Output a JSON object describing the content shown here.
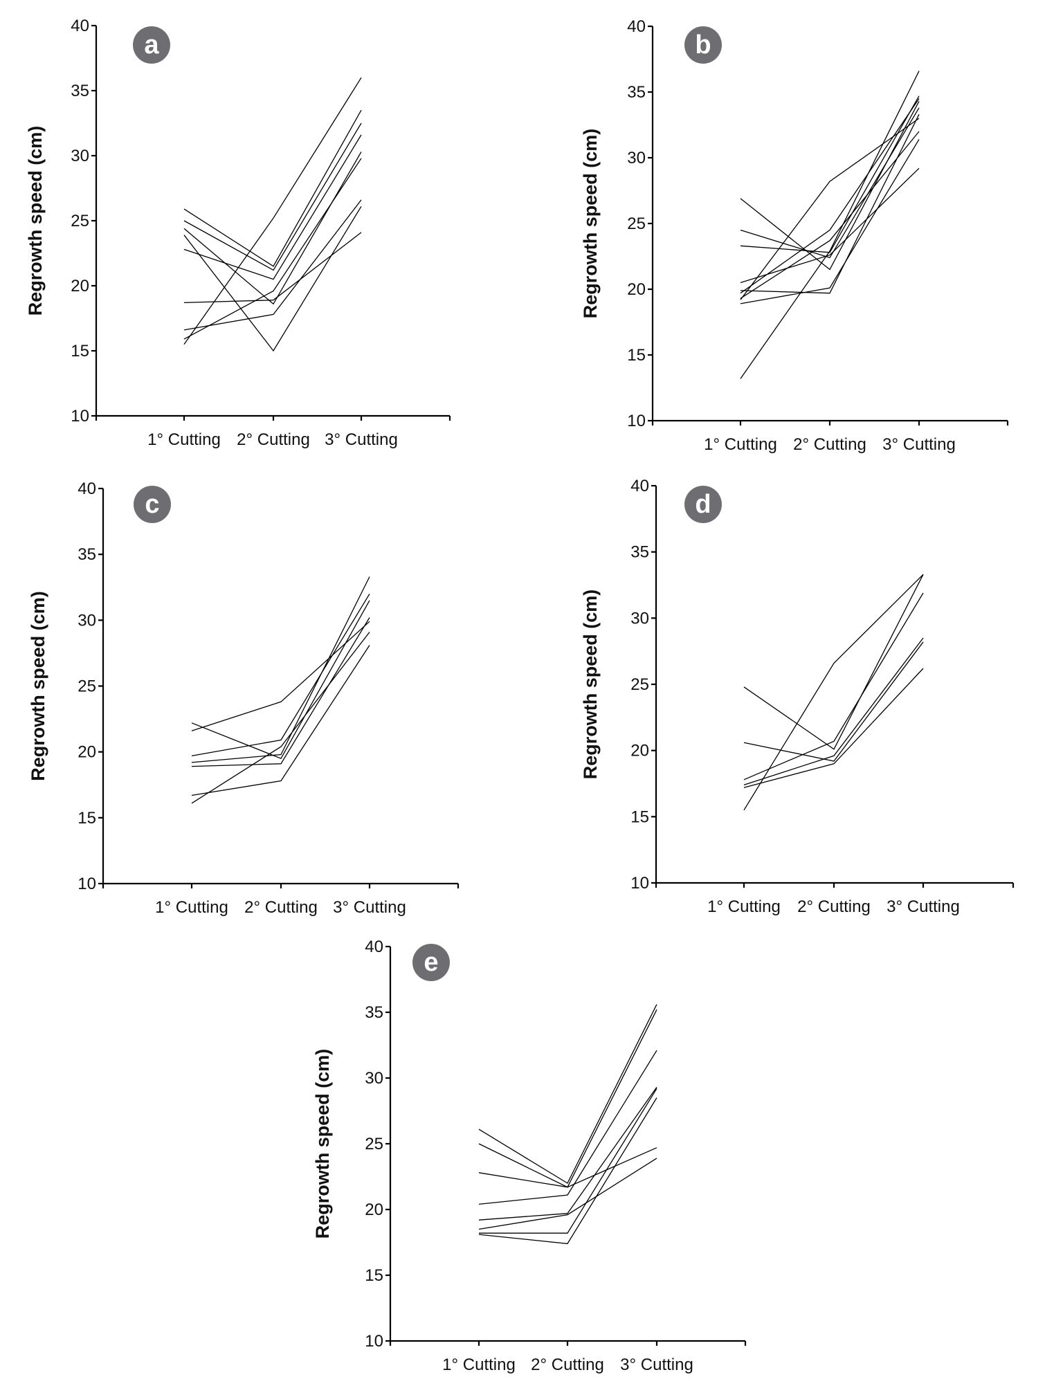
{
  "chart_data": [
    {
      "panel": "a",
      "type": "line",
      "title": "",
      "xlabel": "",
      "ylabel": "Regrowth speed (cm)",
      "ylim": [
        10,
        40
      ],
      "yticks": [
        10,
        15,
        20,
        25,
        30,
        35,
        40
      ],
      "categories": [
        "1° Cutting",
        "2° Cutting",
        "3° Cutting"
      ],
      "grid": false,
      "series": [
        {
          "name": "line-1",
          "values": [
            25.9,
            21.5,
            33.5
          ]
        },
        {
          "name": "line-2",
          "values": [
            25.0,
            21.2,
            32.5
          ]
        },
        {
          "name": "line-3",
          "values": [
            24.4,
            18.6,
            30.3
          ]
        },
        {
          "name": "line-4",
          "values": [
            23.9,
            15.0,
            26.1
          ]
        },
        {
          "name": "line-5",
          "values": [
            22.8,
            20.5,
            31.6
          ]
        },
        {
          "name": "line-6",
          "values": [
            18.7,
            18.9,
            24.1
          ]
        },
        {
          "name": "line-7",
          "values": [
            16.6,
            17.8,
            26.6
          ]
        },
        {
          "name": "line-8",
          "values": [
            15.9,
            19.6,
            29.8
          ]
        },
        {
          "name": "line-9",
          "values": [
            15.5,
            25.2,
            36.0
          ]
        }
      ]
    },
    {
      "panel": "b",
      "type": "line",
      "title": "",
      "xlabel": "",
      "ylabel": "Regrowth speed (cm)",
      "ylim": [
        10,
        40
      ],
      "yticks": [
        10,
        15,
        20,
        25,
        30,
        35,
        40
      ],
      "categories": [
        "1° Cutting",
        "2° Cutting",
        "3° Cutting"
      ],
      "grid": false,
      "series": [
        {
          "name": "line-1",
          "values": [
            26.9,
            21.5,
            34.3
          ]
        },
        {
          "name": "line-2",
          "values": [
            24.5,
            22.4,
            33.8
          ]
        },
        {
          "name": "line-3",
          "values": [
            23.3,
            22.8,
            34.7
          ]
        },
        {
          "name": "line-4",
          "values": [
            20.5,
            22.6,
            29.2
          ]
        },
        {
          "name": "line-5",
          "values": [
            19.9,
            19.7,
            33.3
          ]
        },
        {
          "name": "line-6",
          "values": [
            19.7,
            24.5,
            34.5
          ]
        },
        {
          "name": "line-7",
          "values": [
            19.3,
            23.7,
            32.0
          ]
        },
        {
          "name": "line-8",
          "values": [
            18.9,
            20.1,
            31.4
          ]
        },
        {
          "name": "line-9",
          "values": [
            19.2,
            28.2,
            33.0
          ]
        },
        {
          "name": "line-10",
          "values": [
            13.2,
            22.9,
            36.6
          ]
        }
      ]
    },
    {
      "panel": "c",
      "type": "line",
      "title": "",
      "xlabel": "",
      "ylabel": "Regrowth speed (cm)",
      "ylim": [
        10,
        40
      ],
      "yticks": [
        10,
        15,
        20,
        25,
        30,
        35,
        40
      ],
      "categories": [
        "1° Cutting",
        "2° Cutting",
        "3° Cutting"
      ],
      "grid": false,
      "series": [
        {
          "name": "line-1",
          "values": [
            21.6,
            23.8,
            29.9
          ]
        },
        {
          "name": "line-2",
          "values": [
            22.2,
            19.5,
            31.5
          ]
        },
        {
          "name": "line-3",
          "values": [
            19.7,
            20.9,
            32.0
          ]
        },
        {
          "name": "line-4",
          "values": [
            19.2,
            19.8,
            33.3
          ]
        },
        {
          "name": "line-5",
          "values": [
            18.9,
            19.1,
            30.2
          ]
        },
        {
          "name": "line-6",
          "values": [
            16.7,
            17.8,
            28.1
          ]
        },
        {
          "name": "line-7",
          "values": [
            16.1,
            20.4,
            29.1
          ]
        }
      ]
    },
    {
      "panel": "d",
      "type": "line",
      "title": "",
      "xlabel": "",
      "ylabel": "Regrowth speed (cm)",
      "ylim": [
        10,
        40
      ],
      "yticks": [
        10,
        15,
        20,
        25,
        30,
        35,
        40
      ],
      "categories": [
        "1° Cutting",
        "2° Cutting",
        "3° Cutting"
      ],
      "grid": false,
      "series": [
        {
          "name": "line-1",
          "values": [
            24.8,
            20.1,
            33.3
          ]
        },
        {
          "name": "line-2",
          "values": [
            20.6,
            19.2,
            28.2
          ]
        },
        {
          "name": "line-3",
          "values": [
            17.8,
            20.7,
            31.9
          ]
        },
        {
          "name": "line-4",
          "values": [
            17.4,
            19.6,
            28.5
          ]
        },
        {
          "name": "line-5",
          "values": [
            17.2,
            19.0,
            26.2
          ]
        },
        {
          "name": "line-6",
          "values": [
            15.5,
            26.6,
            33.3
          ]
        }
      ]
    },
    {
      "panel": "e",
      "type": "line",
      "title": "",
      "xlabel": "",
      "ylabel": "Regrowth speed (cm)",
      "ylim": [
        10,
        40
      ],
      "yticks": [
        10,
        15,
        20,
        25,
        30,
        35,
        40
      ],
      "categories": [
        "1° Cutting",
        "2° Cutting",
        "3° Cutting"
      ],
      "grid": false,
      "series": [
        {
          "name": "line-1",
          "values": [
            26.1,
            22.0,
            35.6
          ]
        },
        {
          "name": "line-2",
          "values": [
            25.0,
            21.7,
            35.2
          ]
        },
        {
          "name": "line-3",
          "values": [
            22.8,
            21.7,
            24.7
          ]
        },
        {
          "name": "line-4",
          "values": [
            20.4,
            21.1,
            32.1
          ]
        },
        {
          "name": "line-5",
          "values": [
            19.2,
            19.7,
            29.3
          ]
        },
        {
          "name": "line-6",
          "values": [
            18.5,
            19.6,
            23.9
          ]
        },
        {
          "name": "line-7",
          "values": [
            18.2,
            18.2,
            29.2
          ]
        },
        {
          "name": "line-8",
          "values": [
            18.1,
            17.4,
            28.5
          ]
        }
      ]
    }
  ],
  "style": {
    "badge_color": "#6e6e72",
    "line_color": "#000000"
  }
}
